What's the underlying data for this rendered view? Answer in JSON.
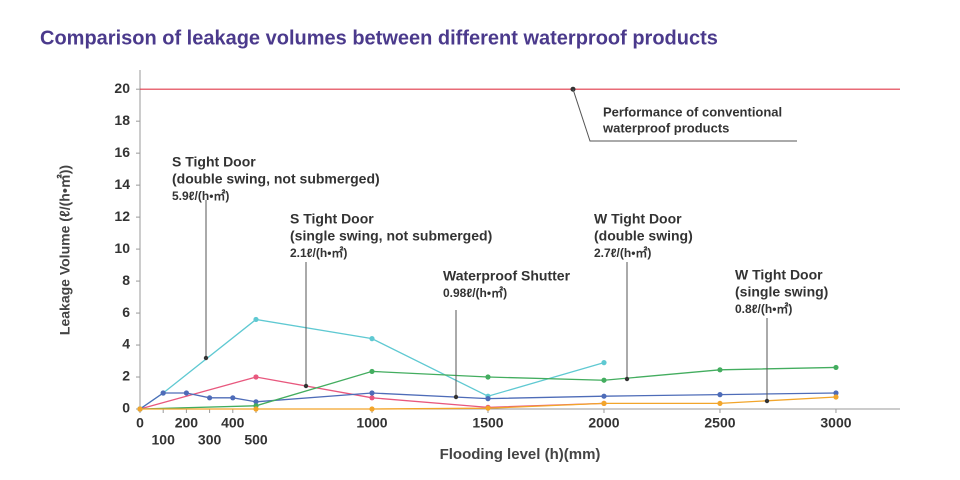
{
  "chart_data": {
    "type": "line",
    "title": "Comparison of leakage volumes between different waterproof products",
    "x_label": "Flooding level (h)(mm)",
    "y_label": "Leakage Volume (ℓ/(h•㎡))",
    "xlim": [
      0,
      3276
    ],
    "ylim": [
      0,
      21.2
    ],
    "xticks": [
      0,
      100,
      200,
      300,
      400,
      500,
      1000,
      1500,
      2000,
      2500,
      3000
    ],
    "yticks": [
      0,
      2,
      4,
      6,
      8,
      10,
      12,
      14,
      16,
      18,
      20
    ],
    "reference": {
      "value": 20,
      "color": "#e03a4a",
      "label": [
        "Performance of conventional",
        "waterproof products"
      ]
    },
    "series": [
      {
        "color": "#5fc9d2",
        "label": [
          "S Tight Door",
          "(double swing, not submerged)"
        ],
        "rate_label": "5.9ℓ/(h•㎡)",
        "label_color": "#1a9ea3",
        "x": [
          0,
          100,
          500,
          1000,
          1500,
          2000
        ],
        "values": [
          0,
          1.0,
          5.6,
          4.4,
          0.8,
          2.9
        ]
      },
      {
        "color": "#e8587e",
        "label": [
          "S Tight Door",
          "(single swing, not submerged)"
        ],
        "rate_label": "2.1ℓ/(h•㎡)",
        "label_color": "#d63a68",
        "x": [
          0,
          500,
          1000,
          1500,
          2000
        ],
        "values": [
          0,
          2.0,
          0.7,
          0.1,
          0.35
        ]
      },
      {
        "color": "#4e6cb8",
        "label": [
          "Waterproof Shutter"
        ],
        "rate_label": "0.98ℓ/(h•㎡)",
        "label_color": "#3d5eae",
        "x": [
          0,
          100,
          200,
          300,
          400,
          500,
          1000,
          1500,
          2000,
          2500,
          3000
        ],
        "values": [
          0,
          1.0,
          1.0,
          0.7,
          0.7,
          0.45,
          1.0,
          0.65,
          0.8,
          0.9,
          1.0
        ]
      },
      {
        "color": "#43ad5f",
        "label": [
          "W Tight Door",
          "(double swing)"
        ],
        "rate_label": "2.7ℓ/(h•㎡)",
        "label_color": "#2e9a48",
        "x": [
          0,
          500,
          1000,
          1500,
          2000,
          2500,
          3000
        ],
        "values": [
          0,
          0.2,
          2.35,
          2.0,
          1.8,
          2.45,
          2.6
        ]
      },
      {
        "color": "#f2a52a",
        "label": [
          "W Tight Door",
          "(single swing)"
        ],
        "rate_label": "0.8ℓ/(h•㎡)",
        "label_color": "#e8900e",
        "x": [
          0,
          500,
          1000,
          1500,
          2000,
          2500,
          3000
        ],
        "values": [
          0,
          0,
          0,
          0.05,
          0.35,
          0.35,
          0.75
        ]
      }
    ]
  }
}
